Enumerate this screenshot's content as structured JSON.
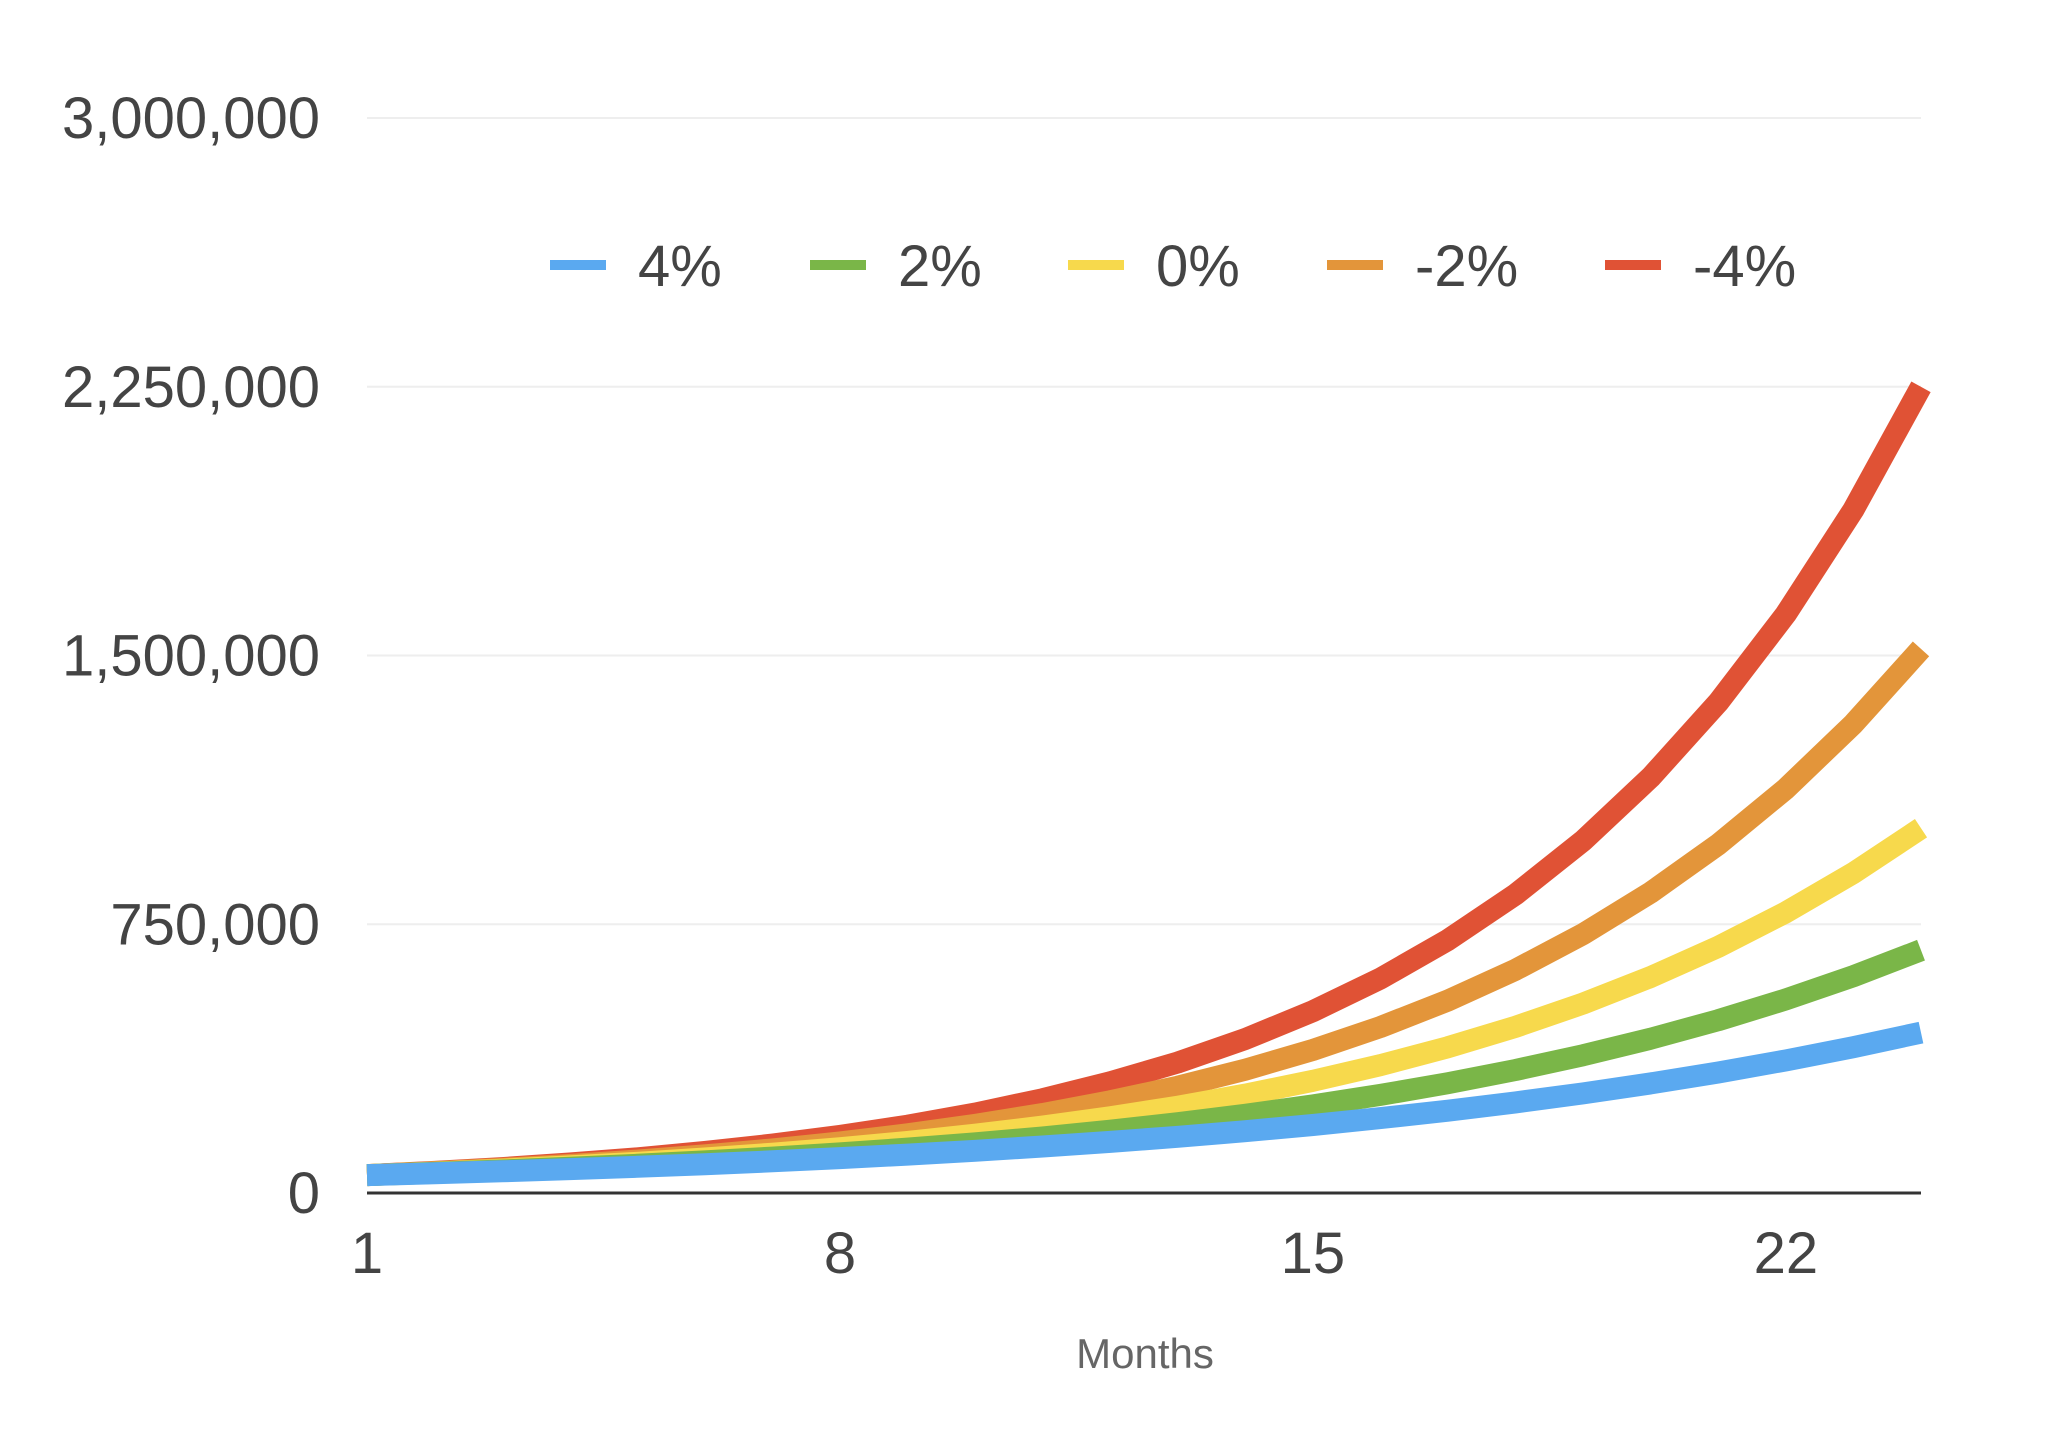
{
  "chart_data": {
    "type": "line",
    "title": "",
    "xlabel": "Months",
    "ylabel": "",
    "x": [
      1,
      2,
      3,
      4,
      5,
      6,
      7,
      8,
      9,
      10,
      11,
      12,
      13,
      14,
      15,
      16,
      17,
      18,
      19,
      20,
      21,
      22,
      23,
      24
    ],
    "xlim": [
      1,
      24
    ],
    "ylim": [
      0,
      3000000
    ],
    "x_ticks": [
      1,
      8,
      15,
      22
    ],
    "x_tick_labels": [
      "1",
      "8",
      "15",
      "22"
    ],
    "y_ticks": [
      0,
      750000,
      1500000,
      2250000,
      3000000
    ],
    "y_tick_labels": [
      "0",
      "750,000",
      "1,500,000",
      "2,250,000",
      "3,000,000"
    ],
    "grid": true,
    "legend_position": "top",
    "series": [
      {
        "name": "4%",
        "color": "#5aa9f0",
        "values": [
          50000,
          55000,
          60500,
          66600,
          73200,
          80500,
          88600,
          97400,
          107200,
          117900,
          129700,
          142700,
          156900,
          172600,
          189900,
          208900,
          229800,
          252700,
          278000,
          305800,
          336400,
          370000,
          407000,
          447700
        ]
      },
      {
        "name": "2%",
        "color": "#7ab648",
        "values": [
          50000,
          56000,
          62700,
          70200,
          78700,
          88100,
          98700,
          110500,
          123800,
          138700,
          155300,
          173900,
          194800,
          218200,
          244400,
          273700,
          306500,
          343300,
          384500,
          430700,
          482300,
          540200,
          605000,
          677600
        ]
      },
      {
        "name": "0%",
        "color": "#f7d94c",
        "values": [
          50000,
          57000,
          65000,
          74100,
          84400,
          96300,
          109700,
          125100,
          142600,
          162600,
          185300,
          211300,
          240900,
          274600,
          313000,
          356900,
          406800,
          463800,
          528700,
          602700,
          687100,
          783300,
          893000,
          1018000
        ]
      },
      {
        "name": "-2%",
        "color": "#e3953a",
        "values": [
          50000,
          58000,
          67300,
          78000,
          90500,
          105000,
          121800,
          141300,
          163900,
          190100,
          220500,
          255800,
          296700,
          344200,
          399300,
          463200,
          537300,
          623200,
          722900,
          838600,
          972800,
          1128400,
          1309000,
          1518400
        ]
      },
      {
        "name": "-4%",
        "color": "#e05235",
        "values": [
          50000,
          59000,
          69600,
          82200,
          96900,
          114400,
          135000,
          159300,
          187900,
          221700,
          261700,
          308800,
          364300,
          429900,
          507300,
          598600,
          706300,
          833400,
          983500,
          1160500,
          1369400,
          1615800,
          1906700,
          2249900
        ]
      }
    ]
  }
}
